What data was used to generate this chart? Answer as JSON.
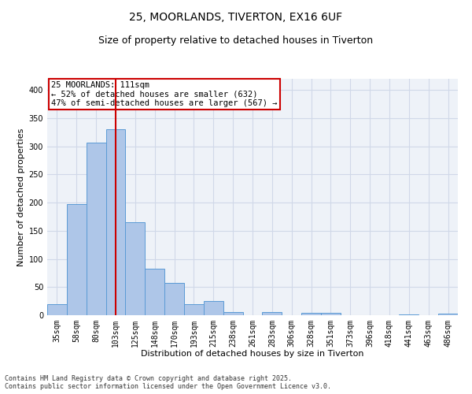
{
  "title_line1": "25, MOORLANDS, TIVERTON, EX16 6UF",
  "title_line2": "Size of property relative to detached houses in Tiverton",
  "xlabel": "Distribution of detached houses by size in Tiverton",
  "ylabel": "Number of detached properties",
  "bar_labels": [
    "35sqm",
    "58sqm",
    "80sqm",
    "103sqm",
    "125sqm",
    "148sqm",
    "170sqm",
    "193sqm",
    "215sqm",
    "238sqm",
    "261sqm",
    "283sqm",
    "306sqm",
    "328sqm",
    "351sqm",
    "373sqm",
    "396sqm",
    "418sqm",
    "441sqm",
    "463sqm",
    "486sqm"
  ],
  "bar_values": [
    20,
    197,
    307,
    330,
    165,
    82,
    57,
    20,
    25,
    6,
    0,
    6,
    0,
    4,
    4,
    0,
    0,
    0,
    2,
    0,
    3
  ],
  "bar_color": "#aec6e8",
  "bar_edgecolor": "#5b9bd5",
  "vline_x": 3,
  "vline_color": "#cc0000",
  "annotation_text": "25 MOORLANDS: 111sqm\n← 52% of detached houses are smaller (632)\n47% of semi-detached houses are larger (567) →",
  "annotation_boxcolor": "white",
  "annotation_boxedgecolor": "#cc0000",
  "annotation_fontsize": 7.5,
  "ylim": [
    0,
    420
  ],
  "yticks": [
    0,
    50,
    100,
    150,
    200,
    250,
    300,
    350,
    400
  ],
  "grid_color": "#d0d8e8",
  "bg_color": "#eef2f8",
  "footnote": "Contains HM Land Registry data © Crown copyright and database right 2025.\nContains public sector information licensed under the Open Government Licence v3.0.",
  "title_fontsize": 10,
  "subtitle_fontsize": 9,
  "xlabel_fontsize": 8,
  "ylabel_fontsize": 8,
  "tick_fontsize": 7,
  "footnote_fontsize": 6
}
